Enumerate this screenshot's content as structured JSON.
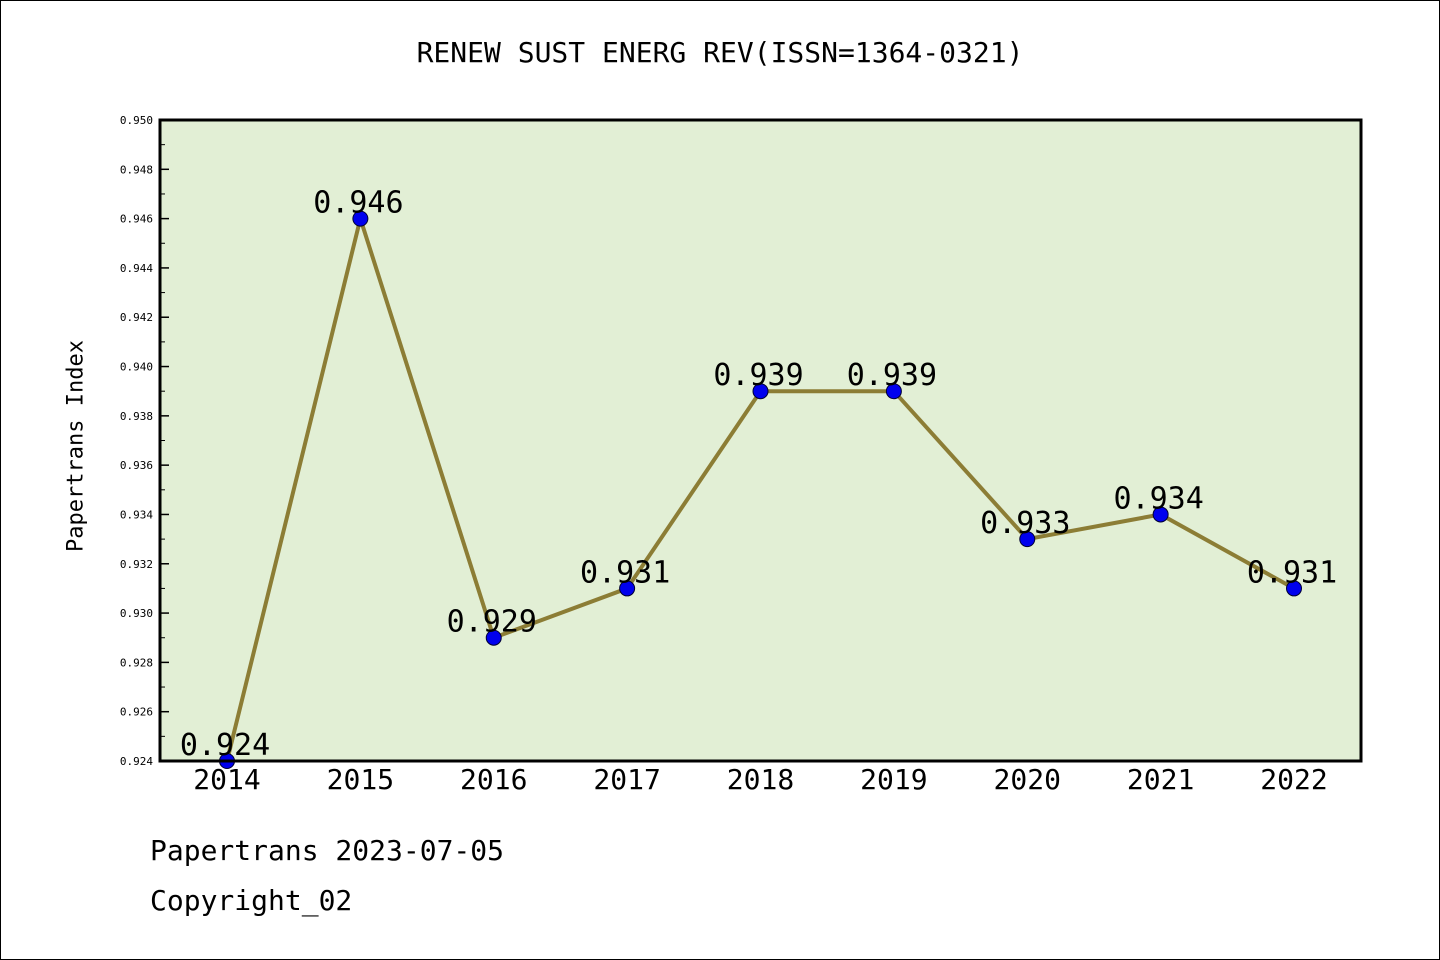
{
  "chart_data": {
    "type": "line",
    "title": "RENEW SUST ENERG REV(ISSN=1364-0321)",
    "xlabel": "",
    "ylabel": "Papertrans Index",
    "categories": [
      "2014",
      "2015",
      "2016",
      "2017",
      "2018",
      "2019",
      "2020",
      "2021",
      "2022"
    ],
    "series": [
      {
        "values": [
          0.924,
          0.946,
          0.929,
          0.931,
          0.939,
          0.939,
          0.933,
          0.934,
          0.931
        ],
        "data_labels": [
          "0.924",
          "0.946",
          "0.929",
          "0.931",
          "0.939",
          "0.939",
          "0.933",
          "0.934",
          "0.931"
        ]
      }
    ],
    "ylim": [
      0.924,
      0.95
    ],
    "yticks": [
      "0.924",
      "0.926",
      "0.928",
      "0.930",
      "0.932",
      "0.934",
      "0.936",
      "0.938",
      "0.940",
      "0.942",
      "0.944",
      "0.946",
      "0.948",
      "0.950"
    ],
    "grid": false,
    "legend": "none"
  },
  "footer": {
    "date_line": "Papertrans 2023-07-05",
    "copyright": "Copyright_02"
  },
  "colors": {
    "plot_background": "#e2efd5",
    "line": "#8c7d35",
    "marker": "#0000ee"
  }
}
